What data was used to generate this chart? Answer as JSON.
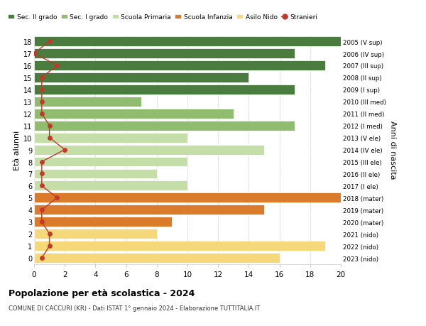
{
  "ages": [
    18,
    17,
    16,
    15,
    14,
    13,
    12,
    11,
    10,
    9,
    8,
    7,
    6,
    5,
    4,
    3,
    2,
    1,
    0
  ],
  "labels_right": [
    "2005 (V sup)",
    "2006 (IV sup)",
    "2007 (III sup)",
    "2008 (II sup)",
    "2009 (I sup)",
    "2010 (III med)",
    "2011 (II med)",
    "2012 (I med)",
    "2013 (V ele)",
    "2014 (IV ele)",
    "2015 (III ele)",
    "2016 (II ele)",
    "2017 (I ele)",
    "2018 (mater)",
    "2019 (mater)",
    "2020 (mater)",
    "2021 (nido)",
    "2022 (nido)",
    "2023 (nido)"
  ],
  "bar_values": [
    20,
    17,
    19,
    14,
    17,
    7,
    13,
    17,
    10,
    15,
    10,
    8,
    10,
    20,
    15,
    9,
    8,
    19,
    16
  ],
  "bar_colors": [
    "#4a7c3f",
    "#4a7c3f",
    "#4a7c3f",
    "#4a7c3f",
    "#4a7c3f",
    "#8fbc6e",
    "#8fbc6e",
    "#8fbc6e",
    "#c5dea8",
    "#c5dea8",
    "#c5dea8",
    "#c5dea8",
    "#c5dea8",
    "#d97b2a",
    "#d97b2a",
    "#d97b2a",
    "#f5d87a",
    "#f5d87a",
    "#f5d87a"
  ],
  "stranieri_values": [
    1.0,
    0.0,
    1.5,
    0.5,
    0.5,
    0.5,
    0.5,
    1.0,
    1.0,
    2.0,
    0.5,
    0.5,
    0.5,
    1.5,
    0.5,
    0.5,
    1.0,
    1.0,
    0.5
  ],
  "title": "Popolazione per età scolastica - 2024",
  "subtitle": "COMUNE DI CACCURI (KR) - Dati ISTAT 1° gennaio 2024 - Elaborazione TUTTITALIA.IT",
  "ylabel": "Età alunni",
  "ylabel2": "Anni di nascita",
  "xlim": [
    0,
    20
  ],
  "legend_labels": [
    "Sec. II grado",
    "Sec. I grado",
    "Scuola Primaria",
    "Scuola Infanzia",
    "Asilo Nido",
    "Stranieri"
  ],
  "legend_colors": [
    "#4a7c3f",
    "#8fbc6e",
    "#c5dea8",
    "#d97b2a",
    "#f5d87a",
    "#c0392b"
  ],
  "grid_color": "#cccccc",
  "bg_color": "#ffffff",
  "bar_height": 0.82
}
